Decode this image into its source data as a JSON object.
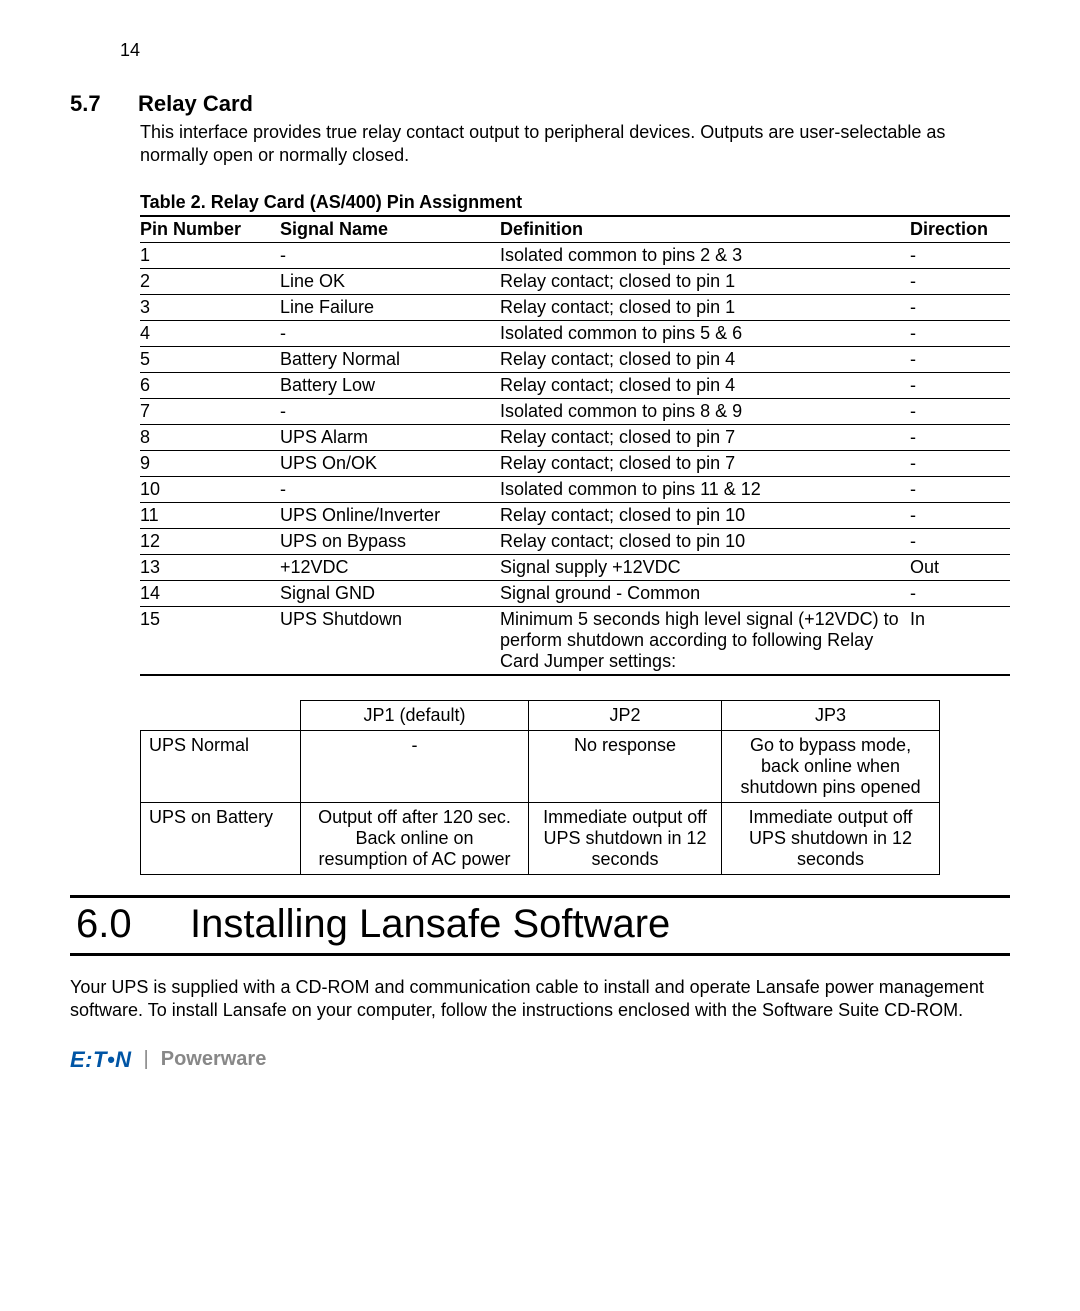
{
  "page_number": "14",
  "section": {
    "number": "5.7",
    "title": "Relay Card",
    "body": "This interface provides true relay contact output to peripheral devices. Outputs are user-selectable as normally open or normally closed."
  },
  "table1": {
    "caption": "Table 2. Relay Card (AS/400) Pin Assignment",
    "columns": [
      "Pin Number",
      "Signal Name",
      "Definition",
      "Direction"
    ],
    "col_widths": [
      "140px",
      "220px",
      "auto",
      "100px"
    ],
    "rows": [
      [
        "1",
        "-",
        "Isolated common to pins 2 & 3",
        "-"
      ],
      [
        "2",
        "Line OK",
        "Relay contact; closed to pin 1",
        "-"
      ],
      [
        "3",
        "Line Failure",
        "Relay contact; closed to pin 1",
        "-"
      ],
      [
        "4",
        "-",
        "Isolated common to pins 5 & 6",
        "-"
      ],
      [
        "5",
        "Battery Normal",
        "Relay contact; closed to pin 4",
        "-"
      ],
      [
        "6",
        "Battery Low",
        "Relay contact; closed to pin 4",
        "-"
      ],
      [
        "7",
        "-",
        "Isolated common to pins 8 & 9",
        "-"
      ],
      [
        "8",
        "UPS Alarm",
        "Relay contact; closed to pin 7",
        "-"
      ],
      [
        "9",
        "UPS On/OK",
        "Relay contact; closed to pin 7",
        "-"
      ],
      [
        "10",
        "-",
        "Isolated common to pins 11 & 12",
        "-"
      ],
      [
        "11",
        "UPS Online/Inverter",
        "Relay contact; closed to pin 10",
        "-"
      ],
      [
        "12",
        "UPS on Bypass",
        "Relay contact; closed to pin 10",
        "-"
      ],
      [
        "13",
        "+12VDC",
        "Signal supply +12VDC",
        "Out"
      ],
      [
        "14",
        "Signal GND",
        "Signal ground - Common",
        "-"
      ],
      [
        "15",
        "UPS Shutdown",
        "Minimum 5 seconds high level signal (+12VDC) to perform shutdown according to following Relay Card Jumper settings:",
        "In"
      ]
    ]
  },
  "table2": {
    "columns": [
      "JP1 (default)",
      "JP2",
      "JP3"
    ],
    "rows": [
      {
        "label": "UPS Normal",
        "cells": [
          "-",
          "No response",
          "Go to bypass mode, back online when shutdown pins opened"
        ]
      },
      {
        "label": "UPS on Battery",
        "cells": [
          "Output off after 120 sec. Back online on resumption of AC power",
          "Immediate output off UPS shutdown in 12 seconds",
          "Immediate output off UPS shutdown in 12 seconds"
        ]
      }
    ]
  },
  "chapter": {
    "number": "6.0",
    "title": "Installing Lansafe Software",
    "body": "Your UPS is supplied with a CD-ROM and communication cable to install and operate Lansafe power management software. To install Lansafe on your computer, follow the instructions enclosed with the Software Suite CD-ROM."
  },
  "footer": {
    "brand1": "E:T•N",
    "brand2": "Powerware",
    "brand1_color": "#0055a5",
    "brand2_color": "#888888"
  },
  "colors": {
    "text": "#000000",
    "background": "#ffffff",
    "rule": "#000000"
  },
  "fonts": {
    "body_size_pt": 13,
    "section_title_size_pt": 16,
    "chapter_title_size_pt": 30
  }
}
